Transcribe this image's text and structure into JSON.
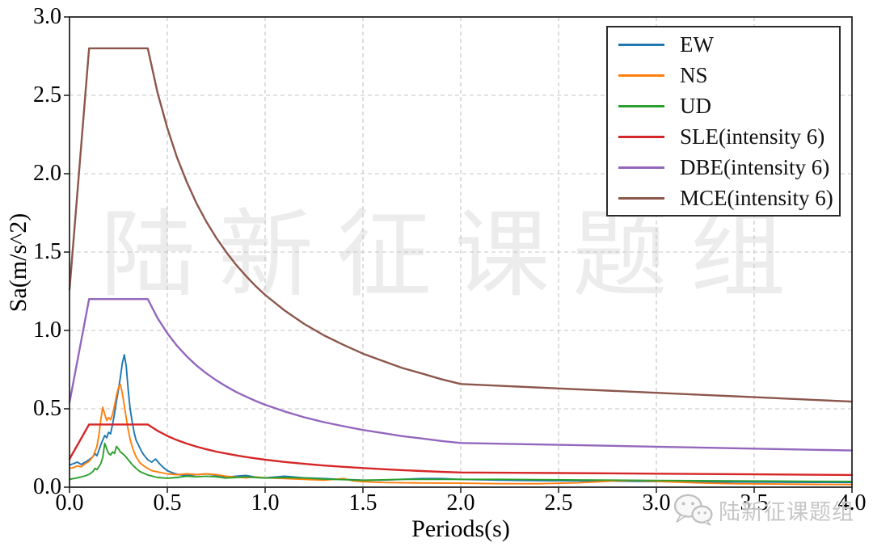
{
  "chart_data": {
    "type": "line",
    "title": "",
    "xlabel": "Periods(s)",
    "ylabel": "Sa(m/s^2)",
    "xlim": [
      0.0,
      4.0
    ],
    "ylim": [
      0.0,
      3.0
    ],
    "xticks": [
      "0.0",
      "0.5",
      "1.0",
      "1.5",
      "2.0",
      "2.5",
      "3.0",
      "3.5",
      "4.0"
    ],
    "yticks": [
      "0.0",
      "0.5",
      "1.0",
      "1.5",
      "2.0",
      "2.5",
      "3.0"
    ],
    "grid": "dashed",
    "legend_position": "upper right",
    "series": [
      {
        "name": "EW",
        "color": "#1f77b4",
        "width": 1.9,
        "points": [
          [
            0,
            0.14
          ],
          [
            0.02,
            0.15
          ],
          [
            0.04,
            0.16
          ],
          [
            0.06,
            0.145
          ],
          [
            0.08,
            0.16
          ],
          [
            0.1,
            0.175
          ],
          [
            0.12,
            0.195
          ],
          [
            0.13,
            0.215
          ],
          [
            0.14,
            0.2
          ],
          [
            0.15,
            0.235
          ],
          [
            0.16,
            0.27
          ],
          [
            0.17,
            0.3
          ],
          [
            0.18,
            0.33
          ],
          [
            0.19,
            0.315
          ],
          [
            0.2,
            0.35
          ],
          [
            0.21,
            0.34
          ],
          [
            0.22,
            0.4
          ],
          [
            0.23,
            0.47
          ],
          [
            0.24,
            0.55
          ],
          [
            0.25,
            0.62
          ],
          [
            0.26,
            0.7
          ],
          [
            0.27,
            0.79
          ],
          [
            0.28,
            0.845
          ],
          [
            0.29,
            0.77
          ],
          [
            0.3,
            0.62
          ],
          [
            0.31,
            0.5
          ],
          [
            0.32,
            0.42
          ],
          [
            0.33,
            0.35
          ],
          [
            0.34,
            0.3
          ],
          [
            0.35,
            0.275
          ],
          [
            0.36,
            0.25
          ],
          [
            0.37,
            0.225
          ],
          [
            0.38,
            0.205
          ],
          [
            0.4,
            0.175
          ],
          [
            0.42,
            0.16
          ],
          [
            0.44,
            0.18
          ],
          [
            0.46,
            0.15
          ],
          [
            0.48,
            0.125
          ],
          [
            0.5,
            0.105
          ],
          [
            0.53,
            0.09
          ],
          [
            0.56,
            0.08
          ],
          [
            0.6,
            0.075
          ],
          [
            0.65,
            0.08
          ],
          [
            0.7,
            0.085
          ],
          [
            0.75,
            0.075
          ],
          [
            0.8,
            0.065
          ],
          [
            0.85,
            0.07
          ],
          [
            0.9,
            0.075
          ],
          [
            0.95,
            0.065
          ],
          [
            1.0,
            0.06
          ],
          [
            1.05,
            0.065
          ],
          [
            1.1,
            0.07
          ],
          [
            1.15,
            0.065
          ],
          [
            1.2,
            0.06
          ],
          [
            1.3,
            0.055
          ],
          [
            1.4,
            0.05
          ],
          [
            1.5,
            0.045
          ],
          [
            1.6,
            0.045
          ],
          [
            1.7,
            0.05
          ],
          [
            1.8,
            0.055
          ],
          [
            1.9,
            0.055
          ],
          [
            2.0,
            0.05
          ],
          [
            2.2,
            0.045
          ],
          [
            2.4,
            0.042
          ],
          [
            2.6,
            0.04
          ],
          [
            2.8,
            0.038
          ],
          [
            3.0,
            0.036
          ],
          [
            3.2,
            0.034
          ],
          [
            3.4,
            0.033
          ],
          [
            3.6,
            0.032
          ],
          [
            3.8,
            0.031
          ],
          [
            4.0,
            0.03
          ]
        ]
      },
      {
        "name": "NS",
        "color": "#ff7f0e",
        "width": 1.9,
        "points": [
          [
            0,
            0.12
          ],
          [
            0.02,
            0.125
          ],
          [
            0.04,
            0.135
          ],
          [
            0.06,
            0.13
          ],
          [
            0.08,
            0.15
          ],
          [
            0.1,
            0.165
          ],
          [
            0.12,
            0.195
          ],
          [
            0.14,
            0.26
          ],
          [
            0.15,
            0.33
          ],
          [
            0.16,
            0.43
          ],
          [
            0.17,
            0.51
          ],
          [
            0.18,
            0.465
          ],
          [
            0.19,
            0.425
          ],
          [
            0.2,
            0.445
          ],
          [
            0.21,
            0.43
          ],
          [
            0.22,
            0.465
          ],
          [
            0.23,
            0.52
          ],
          [
            0.24,
            0.585
          ],
          [
            0.25,
            0.635
          ],
          [
            0.26,
            0.655
          ],
          [
            0.27,
            0.6
          ],
          [
            0.28,
            0.52
          ],
          [
            0.29,
            0.44
          ],
          [
            0.3,
            0.365
          ],
          [
            0.31,
            0.305
          ],
          [
            0.32,
            0.26
          ],
          [
            0.33,
            0.225
          ],
          [
            0.34,
            0.195
          ],
          [
            0.35,
            0.175
          ],
          [
            0.36,
            0.155
          ],
          [
            0.38,
            0.135
          ],
          [
            0.4,
            0.12
          ],
          [
            0.42,
            0.105
          ],
          [
            0.44,
            0.1
          ],
          [
            0.46,
            0.095
          ],
          [
            0.48,
            0.09
          ],
          [
            0.5,
            0.085
          ],
          [
            0.55,
            0.08
          ],
          [
            0.6,
            0.085
          ],
          [
            0.65,
            0.08
          ],
          [
            0.7,
            0.085
          ],
          [
            0.75,
            0.08
          ],
          [
            0.8,
            0.07
          ],
          [
            0.85,
            0.065
          ],
          [
            0.9,
            0.06
          ],
          [
            0.95,
            0.065
          ],
          [
            1.0,
            0.06
          ],
          [
            1.1,
            0.055
          ],
          [
            1.2,
            0.05
          ],
          [
            1.3,
            0.045
          ],
          [
            1.4,
            0.055
          ],
          [
            1.45,
            0.04
          ],
          [
            1.5,
            0.035
          ],
          [
            1.6,
            0.03
          ],
          [
            1.8,
            0.027
          ],
          [
            2.0,
            0.025
          ],
          [
            2.2,
            0.022
          ],
          [
            2.4,
            0.022
          ],
          [
            2.6,
            0.028
          ],
          [
            2.8,
            0.04
          ],
          [
            2.9,
            0.043
          ],
          [
            3.0,
            0.037
          ],
          [
            3.2,
            0.028
          ],
          [
            3.4,
            0.022
          ],
          [
            3.6,
            0.02
          ],
          [
            3.8,
            0.018
          ],
          [
            4.0,
            0.017
          ]
        ]
      },
      {
        "name": "UD",
        "color": "#2ca02c",
        "width": 1.9,
        "points": [
          [
            0,
            0.05
          ],
          [
            0.04,
            0.06
          ],
          [
            0.08,
            0.072
          ],
          [
            0.1,
            0.082
          ],
          [
            0.12,
            0.1
          ],
          [
            0.13,
            0.12
          ],
          [
            0.14,
            0.112
          ],
          [
            0.15,
            0.13
          ],
          [
            0.16,
            0.15
          ],
          [
            0.17,
            0.19
          ],
          [
            0.18,
            0.28
          ],
          [
            0.19,
            0.245
          ],
          [
            0.2,
            0.215
          ],
          [
            0.21,
            0.205
          ],
          [
            0.22,
            0.225
          ],
          [
            0.23,
            0.215
          ],
          [
            0.24,
            0.26
          ],
          [
            0.25,
            0.245
          ],
          [
            0.26,
            0.225
          ],
          [
            0.27,
            0.215
          ],
          [
            0.28,
            0.205
          ],
          [
            0.3,
            0.175
          ],
          [
            0.32,
            0.145
          ],
          [
            0.34,
            0.12
          ],
          [
            0.36,
            0.1
          ],
          [
            0.38,
            0.088
          ],
          [
            0.4,
            0.078
          ],
          [
            0.45,
            0.062
          ],
          [
            0.5,
            0.057
          ],
          [
            0.55,
            0.062
          ],
          [
            0.6,
            0.07
          ],
          [
            0.65,
            0.066
          ],
          [
            0.7,
            0.07
          ],
          [
            0.75,
            0.066
          ],
          [
            0.8,
            0.058
          ],
          [
            0.85,
            0.062
          ],
          [
            0.9,
            0.066
          ],
          [
            0.95,
            0.062
          ],
          [
            1.0,
            0.058
          ],
          [
            1.1,
            0.062
          ],
          [
            1.2,
            0.058
          ],
          [
            1.3,
            0.052
          ],
          [
            1.4,
            0.048
          ],
          [
            1.5,
            0.044
          ],
          [
            1.6,
            0.047
          ],
          [
            1.7,
            0.05
          ],
          [
            1.8,
            0.05
          ],
          [
            2.0,
            0.05
          ],
          [
            2.2,
            0.05
          ],
          [
            2.4,
            0.048
          ],
          [
            2.6,
            0.046
          ],
          [
            2.8,
            0.045
          ],
          [
            3.0,
            0.043
          ],
          [
            3.2,
            0.041
          ],
          [
            3.4,
            0.04
          ],
          [
            3.6,
            0.039
          ],
          [
            3.8,
            0.037
          ],
          [
            4.0,
            0.036
          ]
        ]
      },
      {
        "name": "SLE(intensity 6)",
        "color": "#d62728",
        "width": 2.4,
        "points": [
          [
            0,
            0.18
          ],
          [
            0.1,
            0.4
          ],
          [
            0.4,
            0.4
          ],
          [
            0.45,
            0.36
          ],
          [
            0.5,
            0.327
          ],
          [
            0.55,
            0.3
          ],
          [
            0.6,
            0.278
          ],
          [
            0.65,
            0.258
          ],
          [
            0.7,
            0.242
          ],
          [
            0.75,
            0.227
          ],
          [
            0.8,
            0.215
          ],
          [
            0.85,
            0.203
          ],
          [
            0.9,
            0.193
          ],
          [
            0.95,
            0.184
          ],
          [
            1.0,
            0.175
          ],
          [
            1.1,
            0.161
          ],
          [
            1.2,
            0.149
          ],
          [
            1.3,
            0.138
          ],
          [
            1.4,
            0.13
          ],
          [
            1.5,
            0.122
          ],
          [
            1.6,
            0.115
          ],
          [
            1.7,
            0.109
          ],
          [
            1.8,
            0.103
          ],
          [
            1.9,
            0.098
          ],
          [
            2.0,
            0.094
          ],
          [
            2.5,
            0.09
          ],
          [
            3.0,
            0.086
          ],
          [
            3.5,
            0.082
          ],
          [
            4.0,
            0.078
          ]
        ]
      },
      {
        "name": "DBE(intensity 6)",
        "color": "#9467bd",
        "width": 2.4,
        "points": [
          [
            0,
            0.54
          ],
          [
            0.1,
            1.2
          ],
          [
            0.4,
            1.2
          ],
          [
            0.45,
            1.079
          ],
          [
            0.5,
            0.982
          ],
          [
            0.55,
            0.901
          ],
          [
            0.6,
            0.834
          ],
          [
            0.65,
            0.775
          ],
          [
            0.7,
            0.726
          ],
          [
            0.75,
            0.682
          ],
          [
            0.8,
            0.644
          ],
          [
            0.85,
            0.609
          ],
          [
            0.9,
            0.579
          ],
          [
            0.95,
            0.551
          ],
          [
            1.0,
            0.526
          ],
          [
            1.1,
            0.483
          ],
          [
            1.2,
            0.446
          ],
          [
            1.3,
            0.415
          ],
          [
            1.4,
            0.389
          ],
          [
            1.5,
            0.365
          ],
          [
            1.6,
            0.346
          ],
          [
            1.7,
            0.326
          ],
          [
            1.8,
            0.311
          ],
          [
            1.9,
            0.295
          ],
          [
            2.0,
            0.282
          ],
          [
            2.5,
            0.27
          ],
          [
            3.0,
            0.258
          ],
          [
            3.5,
            0.246
          ],
          [
            4.0,
            0.234
          ]
        ]
      },
      {
        "name": "MCE(intensity 6)",
        "color": "#8c564b",
        "width": 2.4,
        "points": [
          [
            0,
            1.26
          ],
          [
            0.1,
            2.8
          ],
          [
            0.4,
            2.8
          ],
          [
            0.45,
            2.517
          ],
          [
            0.5,
            2.291
          ],
          [
            0.55,
            2.102
          ],
          [
            0.6,
            1.946
          ],
          [
            0.65,
            1.809
          ],
          [
            0.7,
            1.693
          ],
          [
            0.75,
            1.591
          ],
          [
            0.8,
            1.502
          ],
          [
            0.85,
            1.421
          ],
          [
            0.9,
            1.35
          ],
          [
            0.95,
            1.285
          ],
          [
            1.0,
            1.227
          ],
          [
            1.1,
            1.127
          ],
          [
            1.2,
            1.041
          ],
          [
            1.3,
            0.969
          ],
          [
            1.4,
            0.908
          ],
          [
            1.5,
            0.852
          ],
          [
            1.6,
            0.806
          ],
          [
            1.7,
            0.761
          ],
          [
            1.8,
            0.726
          ],
          [
            1.9,
            0.689
          ],
          [
            2.0,
            0.658
          ],
          [
            2.5,
            0.63
          ],
          [
            3.0,
            0.602
          ],
          [
            3.5,
            0.574
          ],
          [
            4.0,
            0.546
          ]
        ]
      }
    ]
  },
  "watermarks": {
    "center_text": "陆新征课题组",
    "corner_text": "陆新征课题组",
    "corner_icon": "wechat-icon"
  },
  "style_colors": {
    "grid": "#c4c4c4",
    "spine": "#262626",
    "tick": "#262626",
    "watermark_center": "#ececec",
    "watermark_corner": "#c6c6c6"
  }
}
